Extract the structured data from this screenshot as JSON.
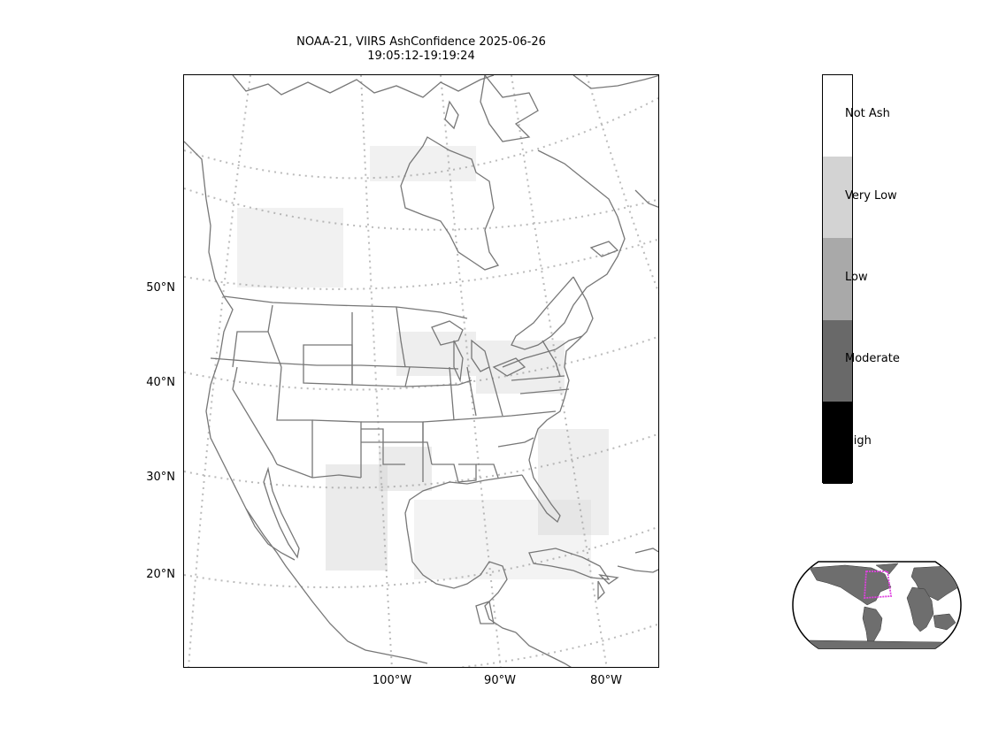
{
  "title": {
    "line1": "NOAA-21, VIIRS AshConfidence 2025-06-26",
    "line2": "19:05:12-19:19:24"
  },
  "map": {
    "lat_labels": [
      "50°N",
      "40°N",
      "30°N",
      "20°N"
    ],
    "lon_labels": [
      "100°W",
      "90°W",
      "80°W"
    ],
    "colors": {
      "coastline": "#777777",
      "gridline": "#bbbbbb",
      "ash_pixels": "#9a9a9a"
    }
  },
  "colorbar": {
    "categories": [
      {
        "label": "Not Ash",
        "color": "#ffffff"
      },
      {
        "label": "Very Low",
        "color": "#d3d3d3"
      },
      {
        "label": "Low",
        "color": "#a9a9a9"
      },
      {
        "label": "Moderate",
        "color": "#696969"
      },
      {
        "label": "High",
        "color": "#000000"
      }
    ]
  },
  "inset": {
    "land_color": "#6e6e6e",
    "box_color": "#e040e0"
  }
}
